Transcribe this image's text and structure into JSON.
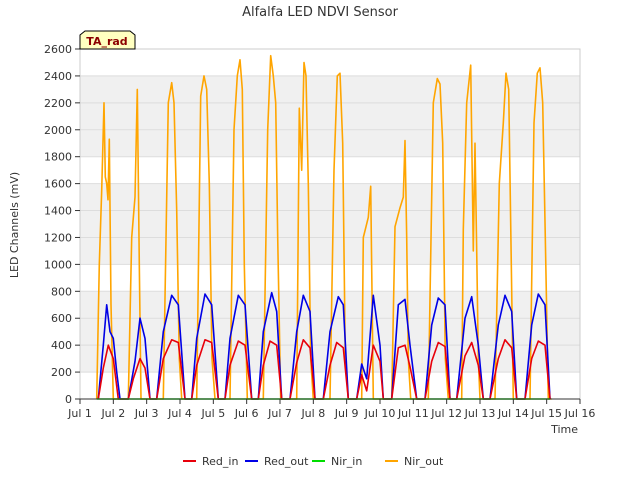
{
  "chart_data": {
    "type": "line",
    "title": "Alfalfa LED NDVI Sensor",
    "xlabel": "Time",
    "ylabel": "LED Channels (mV)",
    "badge": "TA_rad",
    "xlim": [
      1,
      16
    ],
    "ylim": [
      0,
      2600
    ],
    "x_ticks": [
      {
        "v": 1,
        "label": "Jul 1"
      },
      {
        "v": 2,
        "label": "Jul 2"
      },
      {
        "v": 3,
        "label": "Jul 3"
      },
      {
        "v": 4,
        "label": "Jul 4"
      },
      {
        "v": 5,
        "label": "Jul 5"
      },
      {
        "v": 6,
        "label": "Jul 6"
      },
      {
        "v": 7,
        "label": "Jul 7"
      },
      {
        "v": 8,
        "label": "Jul 8"
      },
      {
        "v": 9,
        "label": "Jul 9"
      },
      {
        "v": 10,
        "label": "Jul 10"
      },
      {
        "v": 11,
        "label": "Jul 11"
      },
      {
        "v": 12,
        "label": "Jul 12"
      },
      {
        "v": 13,
        "label": "Jul 13"
      },
      {
        "v": 14,
        "label": "Jul 14"
      },
      {
        "v": 15,
        "label": "Jul 15"
      },
      {
        "v": 16,
        "label": "Jul 16"
      }
    ],
    "y_ticks": [
      {
        "v": 0,
        "label": "0"
      },
      {
        "v": 200,
        "label": "200"
      },
      {
        "v": 400,
        "label": "400"
      },
      {
        "v": 600,
        "label": "600"
      },
      {
        "v": 800,
        "label": "800"
      },
      {
        "v": 1000,
        "label": "1000"
      },
      {
        "v": 1200,
        "label": "1200"
      },
      {
        "v": 1400,
        "label": "1400"
      },
      {
        "v": 1600,
        "label": "1600"
      },
      {
        "v": 1800,
        "label": "1800"
      },
      {
        "v": 2000,
        "label": "2000"
      },
      {
        "v": 2200,
        "label": "2200"
      },
      {
        "v": 2400,
        "label": "2400"
      },
      {
        "v": 2600,
        "label": "2600"
      }
    ],
    "series": [
      {
        "name": "Red_in",
        "color": "#e8000b",
        "x": [
          1.55,
          1.7,
          1.85,
          2.0,
          2.15,
          2.45,
          2.6,
          2.8,
          2.95,
          3.1,
          3.3,
          3.5,
          3.75,
          3.95,
          4.15,
          4.35,
          4.5,
          4.75,
          4.95,
          5.15,
          5.35,
          5.5,
          5.75,
          5.95,
          6.15,
          6.35,
          6.5,
          6.7,
          6.9,
          7.05,
          7.3,
          7.5,
          7.7,
          7.9,
          8.05,
          8.3,
          8.5,
          8.7,
          8.9,
          9.05,
          9.3,
          9.45,
          9.6,
          9.8,
          10.0,
          10.1,
          10.35,
          10.55,
          10.75,
          10.9,
          11.1,
          11.35,
          11.55,
          11.75,
          11.95,
          12.1,
          12.3,
          12.55,
          12.75,
          12.95,
          13.1,
          13.3,
          13.55,
          13.75,
          13.95,
          14.1,
          14.35,
          14.55,
          14.75,
          14.95,
          15.1
        ],
        "y": [
          0,
          230,
          400,
          300,
          0,
          0,
          150,
          300,
          230,
          0,
          0,
          300,
          440,
          420,
          0,
          0,
          250,
          440,
          420,
          0,
          0,
          250,
          430,
          400,
          0,
          0,
          250,
          430,
          400,
          0,
          0,
          270,
          440,
          380,
          0,
          0,
          250,
          420,
          380,
          0,
          0,
          180,
          60,
          400,
          280,
          0,
          0,
          380,
          400,
          240,
          0,
          0,
          280,
          420,
          390,
          0,
          0,
          320,
          420,
          250,
          0,
          0,
          300,
          440,
          380,
          0,
          0,
          300,
          430,
          400,
          0
        ]
      },
      {
        "name": "Red_out",
        "color": "#0000e6",
        "x": [
          1.55,
          1.7,
          1.8,
          1.9,
          2.0,
          2.1,
          2.2,
          2.45,
          2.65,
          2.8,
          2.95,
          3.1,
          3.3,
          3.5,
          3.75,
          3.95,
          4.15,
          4.35,
          4.5,
          4.75,
          4.95,
          5.15,
          5.35,
          5.5,
          5.75,
          5.95,
          6.15,
          6.35,
          6.5,
          6.75,
          6.9,
          7.05,
          7.3,
          7.5,
          7.7,
          7.9,
          8.05,
          8.3,
          8.5,
          8.75,
          8.9,
          9.05,
          9.3,
          9.45,
          9.6,
          9.8,
          10.0,
          10.1,
          10.35,
          10.55,
          10.75,
          10.9,
          11.1,
          11.35,
          11.55,
          11.75,
          11.95,
          12.1,
          12.3,
          12.55,
          12.75,
          12.95,
          13.1,
          13.3,
          13.55,
          13.75,
          13.95,
          14.1,
          14.35,
          14.55,
          14.75,
          14.95,
          15.1
        ],
        "y": [
          0,
          400,
          700,
          500,
          450,
          200,
          0,
          0,
          280,
          600,
          450,
          0,
          0,
          500,
          770,
          700,
          0,
          0,
          450,
          780,
          700,
          0,
          0,
          450,
          770,
          700,
          0,
          0,
          500,
          790,
          650,
          0,
          0,
          500,
          770,
          650,
          0,
          0,
          500,
          760,
          700,
          0,
          0,
          260,
          150,
          770,
          400,
          0,
          0,
          700,
          740,
          400,
          0,
          0,
          550,
          750,
          700,
          0,
          0,
          600,
          760,
          400,
          0,
          0,
          550,
          770,
          650,
          0,
          0,
          550,
          780,
          700,
          0
        ]
      },
      {
        "name": "Nir_in",
        "color": "#00dd00",
        "x": [
          1.5,
          15.1
        ],
        "y": [
          0,
          0
        ]
      },
      {
        "name": "Nir_out",
        "color": "#ffa500",
        "x": [
          1.5,
          1.58,
          1.65,
          1.72,
          1.76,
          1.8,
          1.84,
          1.88,
          1.93,
          2.0,
          2.08,
          2.15,
          2.45,
          2.55,
          2.65,
          2.72,
          2.78,
          2.83,
          2.88,
          2.95,
          3.05,
          3.15,
          3.5,
          3.65,
          3.75,
          3.82,
          3.9,
          3.98,
          4.05,
          4.15,
          4.5,
          4.62,
          4.72,
          4.8,
          4.88,
          4.96,
          5.05,
          5.15,
          5.5,
          5.62,
          5.72,
          5.8,
          5.87,
          5.93,
          6.02,
          6.1,
          6.2,
          6.5,
          6.63,
          6.72,
          6.8,
          6.87,
          6.93,
          7.02,
          7.1,
          7.2,
          7.5,
          7.58,
          7.65,
          7.72,
          7.78,
          7.85,
          7.92,
          8.0,
          8.1,
          8.2,
          8.5,
          8.62,
          8.72,
          8.8,
          8.88,
          8.96,
          9.05,
          9.15,
          9.45,
          9.5,
          9.58,
          9.65,
          9.72,
          9.8,
          9.85,
          10.0,
          10.35,
          10.45,
          10.6,
          10.7,
          10.75,
          10.8,
          10.85,
          10.92,
          11.0,
          11.1,
          11.45,
          11.6,
          11.72,
          11.8,
          11.88,
          11.96,
          12.05,
          12.15,
          12.45,
          12.5,
          12.6,
          12.72,
          12.8,
          12.85,
          12.9,
          12.95,
          13.0,
          13.1,
          13.45,
          13.58,
          13.7,
          13.78,
          13.86,
          13.94,
          14.0,
          14.1,
          14.5,
          14.62,
          14.72,
          14.8,
          14.88,
          14.96,
          15.05,
          15.15
        ],
        "y": [
          0,
          1000,
          1550,
          2200,
          1650,
          1600,
          1480,
          1930,
          700,
          0,
          0,
          0,
          0,
          1200,
          1500,
          2300,
          1000,
          0,
          0,
          0,
          0,
          0,
          0,
          2200,
          2350,
          2200,
          1400,
          300,
          0,
          0,
          0,
          2250,
          2400,
          2300,
          1600,
          300,
          0,
          0,
          0,
          2000,
          2400,
          2520,
          2300,
          1000,
          0,
          0,
          0,
          0,
          2000,
          2550,
          2400,
          2200,
          1200,
          0,
          0,
          0,
          0,
          2160,
          1700,
          2500,
          2400,
          1600,
          300,
          0,
          0,
          0,
          0,
          1700,
          2400,
          2420,
          1900,
          300,
          0,
          0,
          0,
          1200,
          1280,
          1350,
          1580,
          0,
          0,
          0,
          0,
          1280,
          1420,
          1500,
          1920,
          1200,
          300,
          0,
          0,
          0,
          0,
          2200,
          2380,
          2340,
          1900,
          300,
          0,
          0,
          0,
          1260,
          2200,
          2480,
          1100,
          1900,
          1100,
          300,
          0,
          0,
          0,
          1600,
          2050,
          2420,
          2300,
          1000,
          0,
          0,
          0,
          2050,
          2420,
          2460,
          2200,
          1200,
          0,
          0
        ]
      }
    ],
    "legend": {
      "placement": "bottom"
    }
  }
}
